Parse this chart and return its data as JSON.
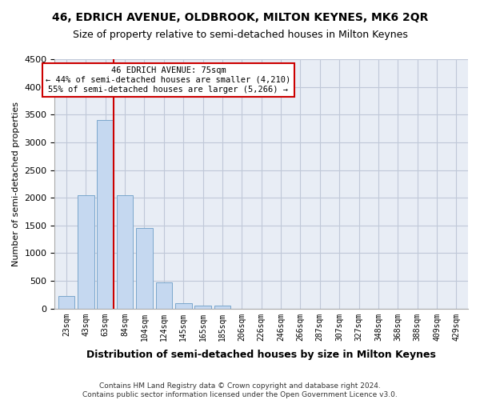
{
  "title1": "46, EDRICH AVENUE, OLDBROOK, MILTON KEYNES, MK6 2QR",
  "title2": "Size of property relative to semi-detached houses in Milton Keynes",
  "xlabel": "Distribution of semi-detached houses by size in Milton Keynes",
  "ylabel": "Number of semi-detached properties",
  "footer": "Contains HM Land Registry data © Crown copyright and database right 2024.\nContains public sector information licensed under the Open Government Licence v3.0.",
  "bins": [
    "23sqm",
    "43sqm",
    "63sqm",
    "84sqm",
    "104sqm",
    "124sqm",
    "145sqm",
    "165sqm",
    "185sqm",
    "206sqm",
    "226sqm",
    "246sqm",
    "266sqm",
    "287sqm",
    "307sqm",
    "327sqm",
    "348sqm",
    "368sqm",
    "388sqm",
    "409sqm",
    "429sqm"
  ],
  "values": [
    230,
    2050,
    3400,
    2050,
    1450,
    470,
    100,
    60,
    50,
    0,
    0,
    0,
    0,
    0,
    0,
    0,
    0,
    0,
    0,
    0,
    0
  ],
  "bar_color": "#c5d8f0",
  "bar_edge_color": "#7ba7cc",
  "property_bin_index": 2,
  "property_label": "46 EDRICH AVENUE: 75sqm",
  "smaller_pct": "44%",
  "smaller_count": "4,210",
  "larger_pct": "55%",
  "larger_count": "5,266",
  "annotation_box_color": "#ffffff",
  "annotation_box_edge": "#cc0000",
  "red_line_color": "#cc0000",
  "ylim": [
    0,
    4500
  ],
  "yticks": [
    0,
    500,
    1000,
    1500,
    2000,
    2500,
    3000,
    3500,
    4000,
    4500
  ],
  "grid_color": "#c0c8d8",
  "bg_color": "#e8edf5"
}
